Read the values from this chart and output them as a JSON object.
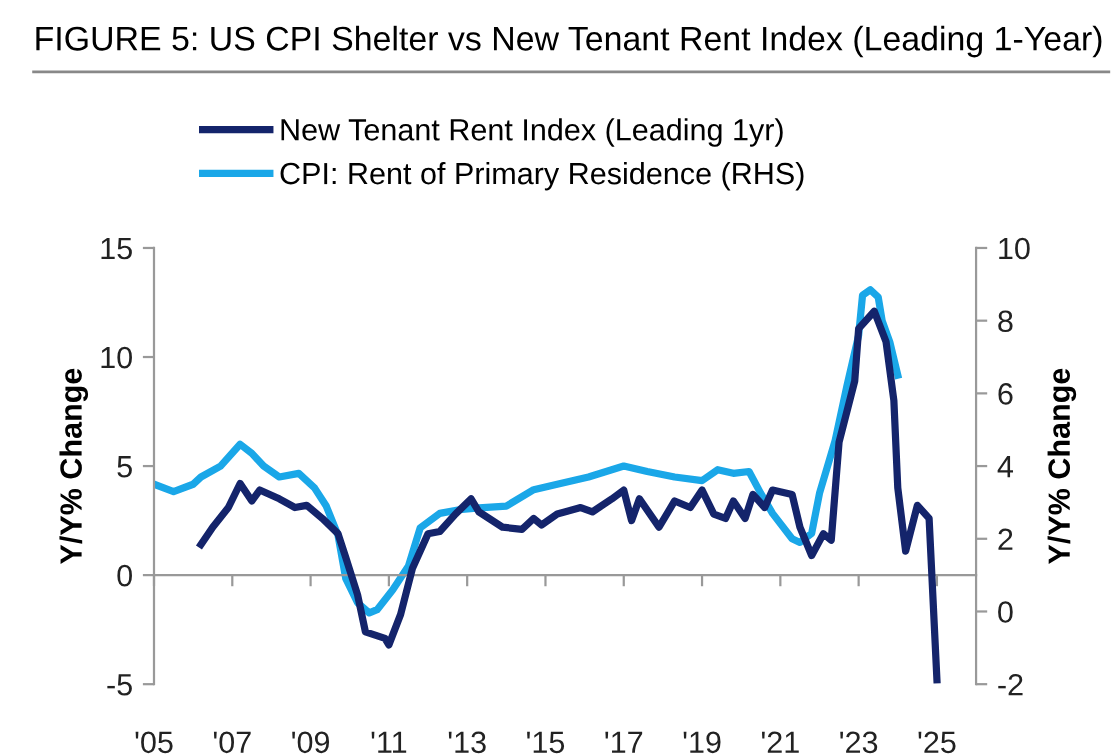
{
  "chart_data": {
    "type": "line",
    "title": "FIGURE 5: US CPI Shelter vs New Tenant Rent Index (Leading 1-Year)",
    "ylabel": "Y/Y% Change",
    "y2label": "Y/Y% Change",
    "xlim": [
      2005,
      2026
    ],
    "xticks": [
      {
        "value": 2005,
        "label": "'05"
      },
      {
        "value": 2007,
        "label": "'07"
      },
      {
        "value": 2009,
        "label": "'09"
      },
      {
        "value": 2011,
        "label": "'11"
      },
      {
        "value": 2013,
        "label": "'13"
      },
      {
        "value": 2015,
        "label": "'15"
      },
      {
        "value": 2017,
        "label": "'17"
      },
      {
        "value": 2019,
        "label": "'19"
      },
      {
        "value": 2021,
        "label": "'21"
      },
      {
        "value": 2023,
        "label": "'23"
      },
      {
        "value": 2025,
        "label": "'25"
      }
    ],
    "ylim": [
      -5,
      15
    ],
    "yticks": [
      -5,
      0,
      5,
      10,
      15
    ],
    "y2lim": [
      -2,
      10
    ],
    "y2ticks": [
      -2,
      0,
      2,
      4,
      6,
      8,
      10
    ],
    "legend": "top",
    "marker": "none",
    "line_style": "solid",
    "series": [
      {
        "name": "New Tenant Rent Index (Leading 1yr)",
        "color": "#14246b",
        "x": [
          2006.2,
          2006.5,
          2006.9,
          2007.2,
          2007.5,
          2007.7,
          2008.2,
          2008.6,
          2008.9,
          2009.3,
          2009.7,
          2009.9,
          2010.2,
          2010.4,
          2010.9,
          2011.0,
          2011.3,
          2011.6,
          2012.0,
          2012.3,
          2012.7,
          2013.1,
          2013.3,
          2013.9,
          2014.4,
          2014.7,
          2014.9,
          2015.3,
          2015.9,
          2016.2,
          2016.7,
          2017.0,
          2017.2,
          2017.4,
          2017.9,
          2018.3,
          2018.7,
          2019.0,
          2019.3,
          2019.6,
          2019.8,
          2020.1,
          2020.3,
          2020.6,
          2020.8,
          2021.3,
          2021.5,
          2021.8,
          2022.1,
          2022.3,
          2022.5,
          2022.9,
          2023.0,
          2023.4,
          2023.7,
          2023.9,
          2024.0,
          2024.2,
          2024.5,
          2024.8,
          2025.0
        ],
        "values": [
          1.4,
          2.2,
          3.1,
          4.2,
          3.4,
          3.9,
          3.5,
          3.1,
          3.2,
          2.6,
          1.9,
          0.8,
          -0.9,
          -2.6,
          -2.9,
          -3.2,
          -1.8,
          0.3,
          1.9,
          2.0,
          2.8,
          3.5,
          2.9,
          2.2,
          2.1,
          2.6,
          2.3,
          2.8,
          3.1,
          2.9,
          3.5,
          3.9,
          2.5,
          3.5,
          2.2,
          3.4,
          3.1,
          3.9,
          2.8,
          2.6,
          3.4,
          2.6,
          3.7,
          3.1,
          3.9,
          3.7,
          2.2,
          0.9,
          1.9,
          1.6,
          6.1,
          8.9,
          11.3,
          12.1,
          10.7,
          8.0,
          4.0,
          1.1,
          3.2,
          2.6,
          -4.8
        ]
      },
      {
        "name": "CPI: Rent of Primary Residence (RHS)",
        "color": "#1aa7e8",
        "axis": "y2",
        "x": [
          2005.0,
          2005.5,
          2006.0,
          2006.2,
          2006.7,
          2007.2,
          2007.5,
          2007.8,
          2008.2,
          2008.7,
          2009.1,
          2009.4,
          2009.7,
          2009.9,
          2010.2,
          2010.5,
          2010.7,
          2011.1,
          2011.5,
          2011.8,
          2012.3,
          2012.8,
          2013.3,
          2014.0,
          2014.7,
          2015.3,
          2016.1,
          2017.0,
          2017.6,
          2018.3,
          2019.0,
          2019.4,
          2019.8,
          2020.2,
          2020.5,
          2020.8,
          2021.3,
          2021.5,
          2021.8,
          2022.0,
          2022.4,
          2022.7,
          2023.0,
          2023.1,
          2023.3,
          2023.5,
          2023.6,
          2023.8,
          2024.0
        ],
        "values": [
          3.5,
          3.3,
          3.5,
          3.7,
          4.0,
          4.6,
          4.35,
          4.0,
          3.7,
          3.8,
          3.4,
          2.9,
          2.1,
          0.9,
          0.24,
          -0.04,
          0.05,
          0.6,
          1.25,
          2.3,
          2.7,
          2.8,
          2.85,
          2.9,
          3.35,
          3.5,
          3.7,
          4.0,
          3.85,
          3.7,
          3.6,
          3.9,
          3.8,
          3.85,
          3.25,
          2.7,
          2.0,
          1.9,
          2.15,
          3.25,
          4.7,
          6.2,
          7.6,
          8.7,
          8.85,
          8.65,
          8.0,
          7.4,
          6.5
        ]
      }
    ]
  }
}
